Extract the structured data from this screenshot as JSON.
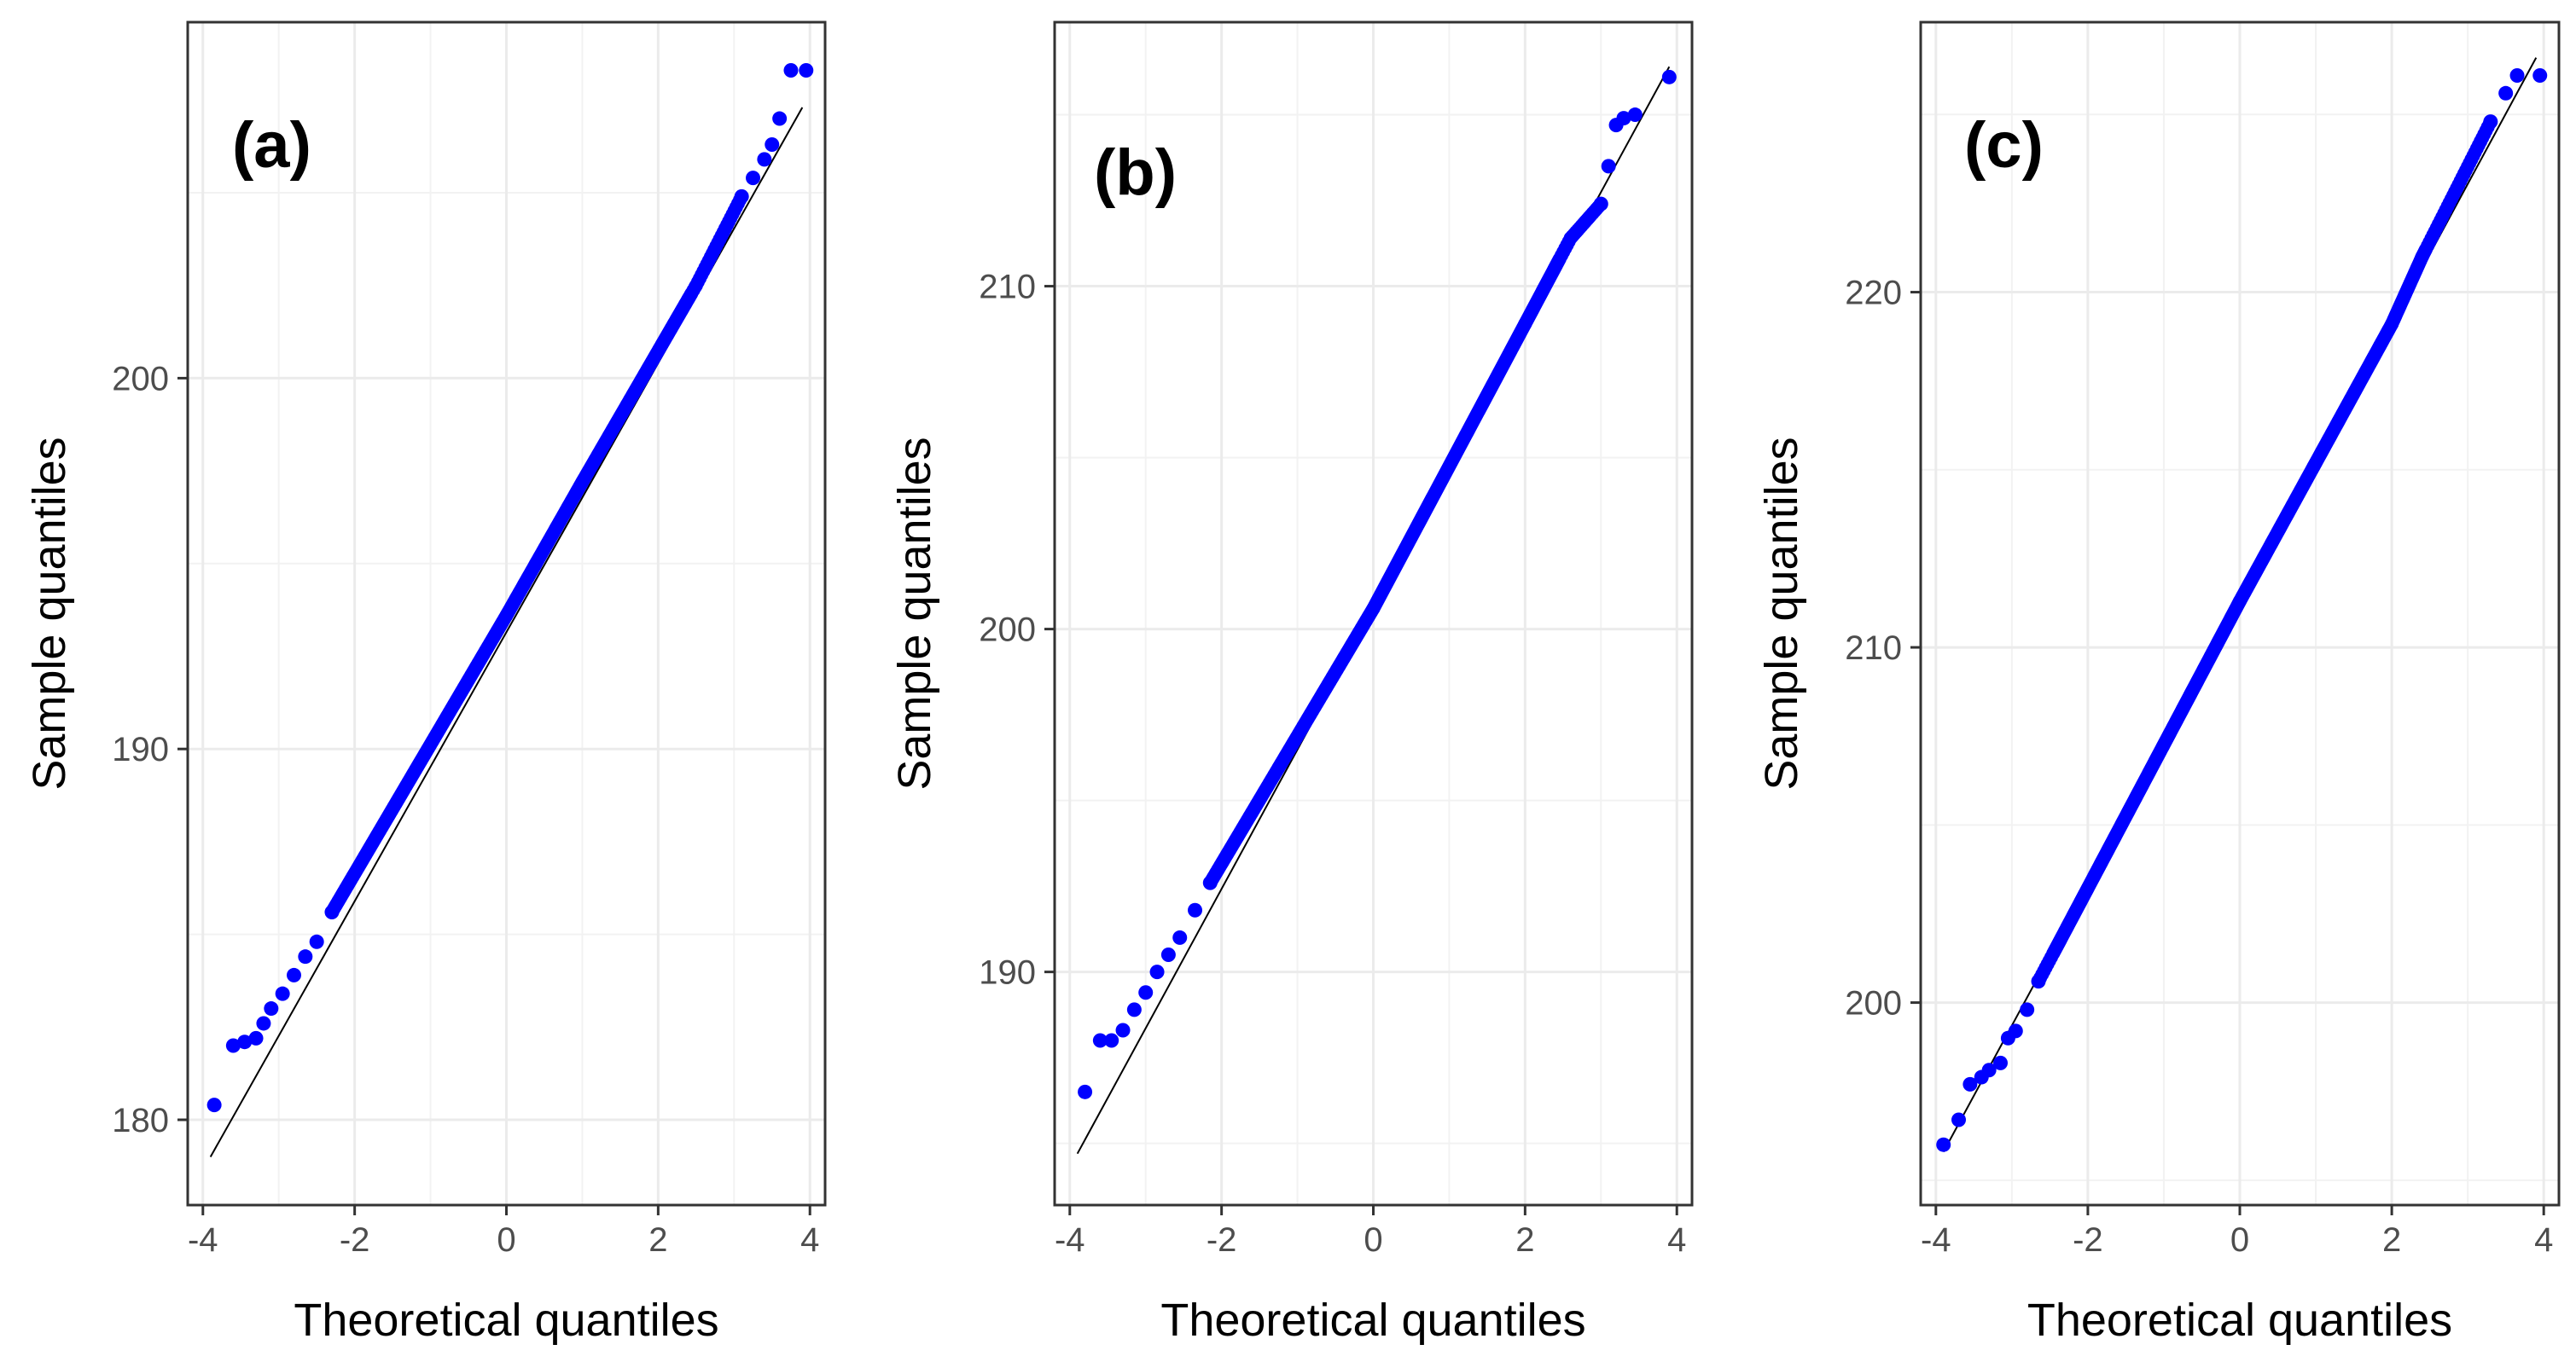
{
  "chart_data": [
    {
      "type": "scatter",
      "panel_label": "(a)",
      "xlabel": "Theoretical quantiles",
      "ylabel": "Sample quantiles",
      "xlim": [
        -4.2,
        4.2
      ],
      "ylim": [
        177.7,
        209.6
      ],
      "xticks": [
        -4,
        -2,
        0,
        2,
        4
      ],
      "xtick_labels": [
        "-4",
        "-2",
        "0",
        "2",
        "4"
      ],
      "yticks": [
        180,
        190,
        200
      ],
      "ytick_labels": [
        "180",
        "190",
        "200"
      ],
      "grid": true,
      "reference_line": {
        "x": [
          -3.9,
          3.9
        ],
        "y": [
          179.0,
          207.3
        ]
      },
      "points": [
        [
          -3.85,
          180.4
        ],
        [
          -3.6,
          182.0
        ],
        [
          -3.45,
          182.1
        ],
        [
          -3.3,
          182.2
        ],
        [
          -3.2,
          182.6
        ],
        [
          -3.1,
          183.0
        ],
        [
          -2.95,
          183.4
        ],
        [
          -2.8,
          183.9
        ],
        [
          -2.65,
          184.4
        ],
        [
          -2.5,
          184.8
        ],
        [
          -2.3,
          185.6
        ],
        [
          3.1,
          204.9
        ],
        [
          3.25,
          205.4
        ],
        [
          3.4,
          205.9
        ],
        [
          3.5,
          206.3
        ],
        [
          3.6,
          207.0
        ],
        [
          3.75,
          208.3
        ],
        [
          3.95,
          208.3
        ]
      ],
      "line_segments": [
        {
          "from": [
            -2.3,
            185.6
          ],
          "to": [
            0,
            193.6
          ]
        },
        {
          "from": [
            0,
            193.6
          ],
          "to": [
            1.0,
            197.2
          ]
        },
        {
          "from": [
            1.0,
            197.2
          ],
          "to": [
            2.5,
            202.5
          ]
        },
        {
          "from": [
            2.5,
            202.5
          ],
          "to": [
            3.1,
            204.9
          ]
        }
      ],
      "series_color": "#0000ff",
      "line_color": "#000000"
    },
    {
      "type": "scatter",
      "panel_label": "(b)",
      "xlabel": "Theoretical quantiles",
      "ylabel": "Sample quantiles",
      "xlim": [
        -4.2,
        4.2
      ],
      "ylim": [
        183.2,
        217.7
      ],
      "xticks": [
        -4,
        -2,
        0,
        2,
        4
      ],
      "xtick_labels": [
        "-4",
        "-2",
        "0",
        "2",
        "4"
      ],
      "yticks": [
        190,
        200,
        210
      ],
      "ytick_labels": [
        "190",
        "200",
        "210"
      ],
      "grid": true,
      "reference_line": {
        "x": [
          -3.9,
          3.9
        ],
        "y": [
          184.7,
          216.4
        ]
      },
      "points": [
        [
          -3.8,
          186.5
        ],
        [
          -3.6,
          188.0
        ],
        [
          -3.45,
          188.0
        ],
        [
          -3.3,
          188.3
        ],
        [
          -3.15,
          188.9
        ],
        [
          -3.0,
          189.4
        ],
        [
          -2.85,
          190.0
        ],
        [
          -2.7,
          190.5
        ],
        [
          -2.55,
          191.0
        ],
        [
          -2.35,
          191.8
        ],
        [
          -2.15,
          192.6
        ],
        [
          3.0,
          212.4
        ],
        [
          3.1,
          213.5
        ],
        [
          3.2,
          214.7
        ],
        [
          3.3,
          214.9
        ],
        [
          3.45,
          215.0
        ],
        [
          3.9,
          216.1
        ]
      ],
      "line_segments": [
        {
          "from": [
            -2.15,
            192.6
          ],
          "to": [
            0,
            200.6
          ]
        },
        {
          "from": [
            0,
            200.6
          ],
          "to": [
            2.0,
            208.9
          ]
        },
        {
          "from": [
            2.0,
            208.9
          ],
          "to": [
            2.6,
            211.4
          ]
        },
        {
          "from": [
            2.6,
            211.4
          ],
          "to": [
            3.0,
            212.4
          ]
        }
      ],
      "series_color": "#0000ff",
      "line_color": "#000000"
    },
    {
      "type": "scatter",
      "panel_label": "(c)",
      "xlabel": "Theoretical quantiles",
      "ylabel": "Sample quantiles",
      "xlim": [
        -4.2,
        4.2
      ],
      "ylim": [
        194.3,
        227.6
      ],
      "xticks": [
        -4,
        -2,
        0,
        2,
        4
      ],
      "xtick_labels": [
        "-4",
        "-2",
        "0",
        "2",
        "4"
      ],
      "yticks": [
        200,
        210,
        220
      ],
      "ytick_labels": [
        "200",
        "210",
        "220"
      ],
      "grid": true,
      "reference_line": {
        "x": [
          -3.9,
          3.9
        ],
        "y": [
          195.8,
          226.6
        ]
      },
      "points": [
        [
          -3.9,
          196.0
        ],
        [
          -3.7,
          196.7
        ],
        [
          -3.55,
          197.7
        ],
        [
          -3.4,
          197.9
        ],
        [
          -3.3,
          198.1
        ],
        [
          -3.15,
          198.3
        ],
        [
          -3.05,
          199.0
        ],
        [
          -2.95,
          199.2
        ],
        [
          -2.8,
          199.8
        ],
        [
          -2.65,
          200.6
        ],
        [
          3.3,
          224.8
        ],
        [
          3.5,
          225.6
        ],
        [
          3.65,
          226.1
        ],
        [
          3.95,
          226.1
        ]
      ],
      "line_segments": [
        {
          "from": [
            -2.65,
            200.6
          ],
          "to": [
            0,
            211.3
          ]
        },
        {
          "from": [
            0,
            211.3
          ],
          "to": [
            2.0,
            219.1
          ]
        },
        {
          "from": [
            2.0,
            219.1
          ],
          "to": [
            2.4,
            221.0
          ]
        },
        {
          "from": [
            2.4,
            221.0
          ],
          "to": [
            3.3,
            224.8
          ]
        }
      ],
      "series_color": "#0000ff",
      "line_color": "#000000"
    }
  ]
}
